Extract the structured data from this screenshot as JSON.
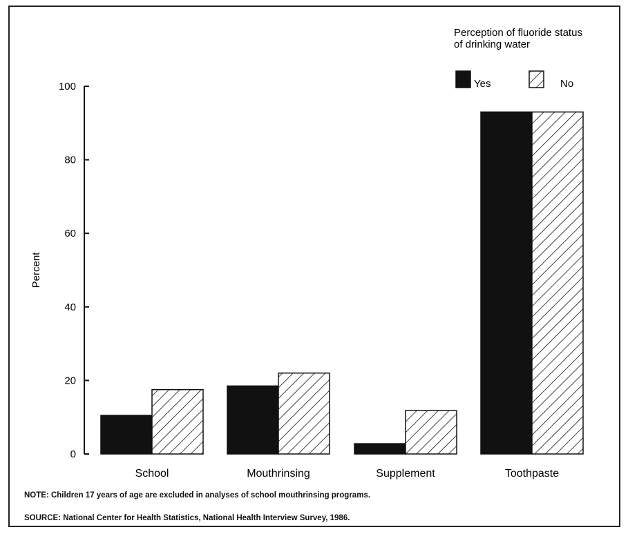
{
  "chart_data": {
    "type": "bar",
    "title": "",
    "xlabel": "",
    "ylabel": "Percent",
    "ylim": [
      0,
      100
    ],
    "yticks": [
      0,
      20,
      40,
      60,
      80,
      100
    ],
    "categories": [
      "School",
      "Mouthrinsing",
      "Supplement",
      "Toothpaste"
    ],
    "legend_title": "Perception of fluoride status of drinking water",
    "legend_title_lines": [
      "Perception of fluoride status",
      "of drinking water"
    ],
    "legend_placement": "top-right",
    "grid": false,
    "series": [
      {
        "name": "Yes",
        "values": [
          10.5,
          18.5,
          2.8,
          93
        ],
        "fill": "solid",
        "color": "#111111"
      },
      {
        "name": "No",
        "values": [
          17.5,
          22,
          11.8,
          93
        ],
        "fill": "diagonal-hatch",
        "color": "#111111"
      }
    ]
  },
  "note": "NOTE: Children 17 years of age are excluded in analyses of school mouthrinsing programs.",
  "source": "SOURCE: National Center for Health Statistics, National Health Interview Survey, 1986."
}
